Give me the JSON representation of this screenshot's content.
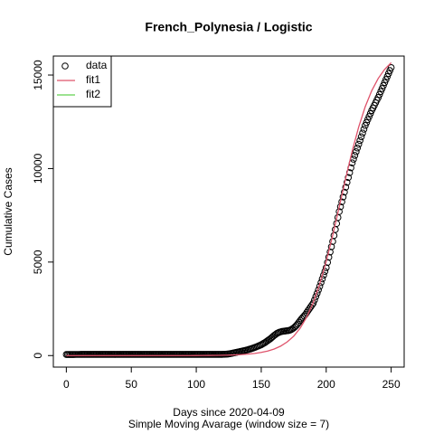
{
  "chart_data": {
    "type": "scatter",
    "title": "French_Polynesia / Logistic",
    "x_label": "Days since 2020-04-09",
    "x_label2": "Simple Moving Avarage (window size = 7)",
    "y_label": "Cumulative Cases",
    "xlim": [
      -10,
      260
    ],
    "ylim": [
      -616,
      16016
    ],
    "xticks": [
      0,
      50,
      100,
      150,
      200,
      250
    ],
    "yticks": [
      0,
      5000,
      10000,
      15000
    ],
    "legend": "top-left",
    "series": [
      {
        "name": "data",
        "color": "#000000",
        "marker": "circle",
        "x": [
          0,
          1,
          2,
          3,
          4,
          5,
          6,
          7,
          8,
          9,
          10,
          11,
          12,
          13,
          14,
          15,
          16,
          17,
          18,
          19,
          20,
          21,
          22,
          23,
          24,
          25,
          26,
          27,
          28,
          29,
          30,
          31,
          32,
          33,
          34,
          35,
          36,
          37,
          38,
          39,
          40,
          41,
          42,
          43,
          44,
          45,
          46,
          47,
          48,
          49,
          50,
          51,
          52,
          53,
          54,
          55,
          56,
          57,
          58,
          59,
          60,
          61,
          62,
          63,
          64,
          65,
          66,
          67,
          68,
          69,
          70,
          71,
          72,
          73,
          74,
          75,
          76,
          77,
          78,
          79,
          80,
          81,
          82,
          83,
          84,
          85,
          86,
          87,
          88,
          89,
          90,
          91,
          92,
          93,
          94,
          95,
          96,
          97,
          98,
          99,
          100,
          101,
          102,
          103,
          104,
          105,
          106,
          107,
          108,
          109,
          110,
          111,
          112,
          113,
          114,
          115,
          116,
          117,
          118,
          119,
          120,
          121,
          122,
          123,
          124,
          125,
          126,
          127,
          128,
          129,
          130,
          131,
          132,
          133,
          134,
          135,
          136,
          137,
          138,
          139,
          140,
          141,
          142,
          143,
          144,
          145,
          146,
          147,
          148,
          149,
          150,
          151,
          152,
          153,
          154,
          155,
          156,
          157,
          158,
          159,
          160,
          161,
          162,
          163,
          164,
          165,
          166,
          167,
          168,
          169,
          170,
          171,
          172,
          173,
          174,
          175,
          176,
          177,
          178,
          179,
          180,
          181,
          182,
          183,
          184,
          185,
          186,
          187,
          188,
          189,
          190,
          191,
          192,
          193,
          194,
          195,
          196,
          197,
          198,
          199,
          200,
          201,
          202,
          203,
          204,
          205,
          206,
          207,
          208,
          209,
          210,
          211,
          212,
          213,
          214,
          215,
          216,
          217,
          218,
          219,
          220,
          221,
          222,
          223,
          224,
          225,
          226,
          227,
          228,
          229,
          230,
          231,
          232,
          233,
          234,
          235,
          236,
          237,
          238,
          239,
          240,
          241,
          242,
          243,
          244,
          245,
          246,
          247,
          248,
          249,
          250
        ],
        "values": [
          58,
          58,
          59,
          59,
          60,
          60,
          60,
          61,
          61,
          61,
          61,
          62,
          62,
          62,
          62,
          62,
          62,
          62,
          62,
          62,
          62,
          62,
          62,
          62,
          62,
          62,
          62,
          62,
          62,
          62,
          62,
          62,
          62,
          62,
          62,
          62,
          62,
          62,
          62,
          62,
          62,
          62,
          62,
          62,
          62,
          62,
          62,
          62,
          62,
          62,
          62,
          62,
          62,
          62,
          62,
          62,
          62,
          62,
          62,
          62,
          63,
          63,
          63,
          63,
          63,
          63,
          63,
          63,
          63,
          63,
          63,
          63,
          63,
          63,
          63,
          63,
          63,
          63,
          63,
          63,
          63,
          63,
          63,
          63,
          63,
          63,
          63,
          63,
          63,
          63,
          63,
          63,
          63,
          63,
          63,
          63,
          63,
          63,
          63,
          63,
          64,
          64,
          64,
          64,
          64,
          64,
          64,
          64,
          64,
          64,
          64,
          64,
          64,
          64,
          64,
          64,
          64,
          64,
          64,
          64,
          66,
          68,
          70,
          74,
          80,
          90,
          100,
          115,
          130,
          145,
          160,
          175,
          190,
          205,
          220,
          235,
          250,
          265,
          280,
          300,
          320,
          340,
          360,
          385,
          410,
          435,
          460,
          490,
          520,
          550,
          580,
          620,
          660,
          700,
          750,
          800,
          850,
          900,
          960,
          1020,
          1080,
          1130,
          1180,
          1220,
          1250,
          1270,
          1290,
          1300,
          1310,
          1320,
          1330,
          1340,
          1360,
          1390,
          1430,
          1480,
          1540,
          1610,
          1690,
          1780,
          1880,
          1960,
          2040,
          2120,
          2200,
          2300,
          2400,
          2500,
          2600,
          2700,
          2800,
          2970,
          3150,
          3330,
          3510,
          3700,
          3900,
          4100,
          4300,
          4500,
          4700,
          4980,
          5260,
          5540,
          5820,
          6100,
          6420,
          6740,
          7060,
          7380,
          7700,
          7960,
          8220,
          8480,
          8740,
          9000,
          9260,
          9520,
          9780,
          10040,
          10300,
          10500,
          10700,
          10900,
          11100,
          11300,
          11500,
          11700,
          11900,
          12100,
          12300,
          12460,
          12620,
          12780,
          12940,
          13100,
          13240,
          13380,
          13520,
          13660,
          13800,
          13960,
          14120,
          14280,
          14440,
          14600,
          14760,
          14920,
          15080,
          15240,
          15400
        ]
      },
      {
        "name": "fit1",
        "color": "#DF536B",
        "marker": "line",
        "x": [
          0,
          5,
          10,
          15,
          20,
          25,
          30,
          35,
          40,
          45,
          50,
          55,
          60,
          65,
          70,
          75,
          80,
          85,
          90,
          95,
          100,
          105,
          110,
          115,
          120,
          125,
          130,
          135,
          140,
          145,
          150,
          155,
          160,
          165,
          170,
          175,
          180,
          185,
          190,
          195,
          200,
          205,
          210,
          215,
          220,
          225,
          230,
          235,
          240,
          245,
          250
        ],
        "values": [
          0,
          0,
          0,
          0,
          0,
          0,
          0,
          0,
          0,
          0,
          0,
          0,
          0,
          0,
          0,
          0,
          0,
          0,
          0,
          0,
          4,
          6,
          9,
          13,
          18,
          26,
          38,
          55,
          80,
          116,
          168,
          244,
          352,
          508,
          731,
          1037,
          1469,
          2055,
          2830,
          3819,
          5030,
          6425,
          7940,
          9478,
          10934,
          12222,
          13301,
          14160,
          14817,
          15306,
          15660
        ]
      },
      {
        "name": "fit2",
        "color": "#61D04F",
        "marker": "line",
        "x": [],
        "values": []
      }
    ]
  }
}
